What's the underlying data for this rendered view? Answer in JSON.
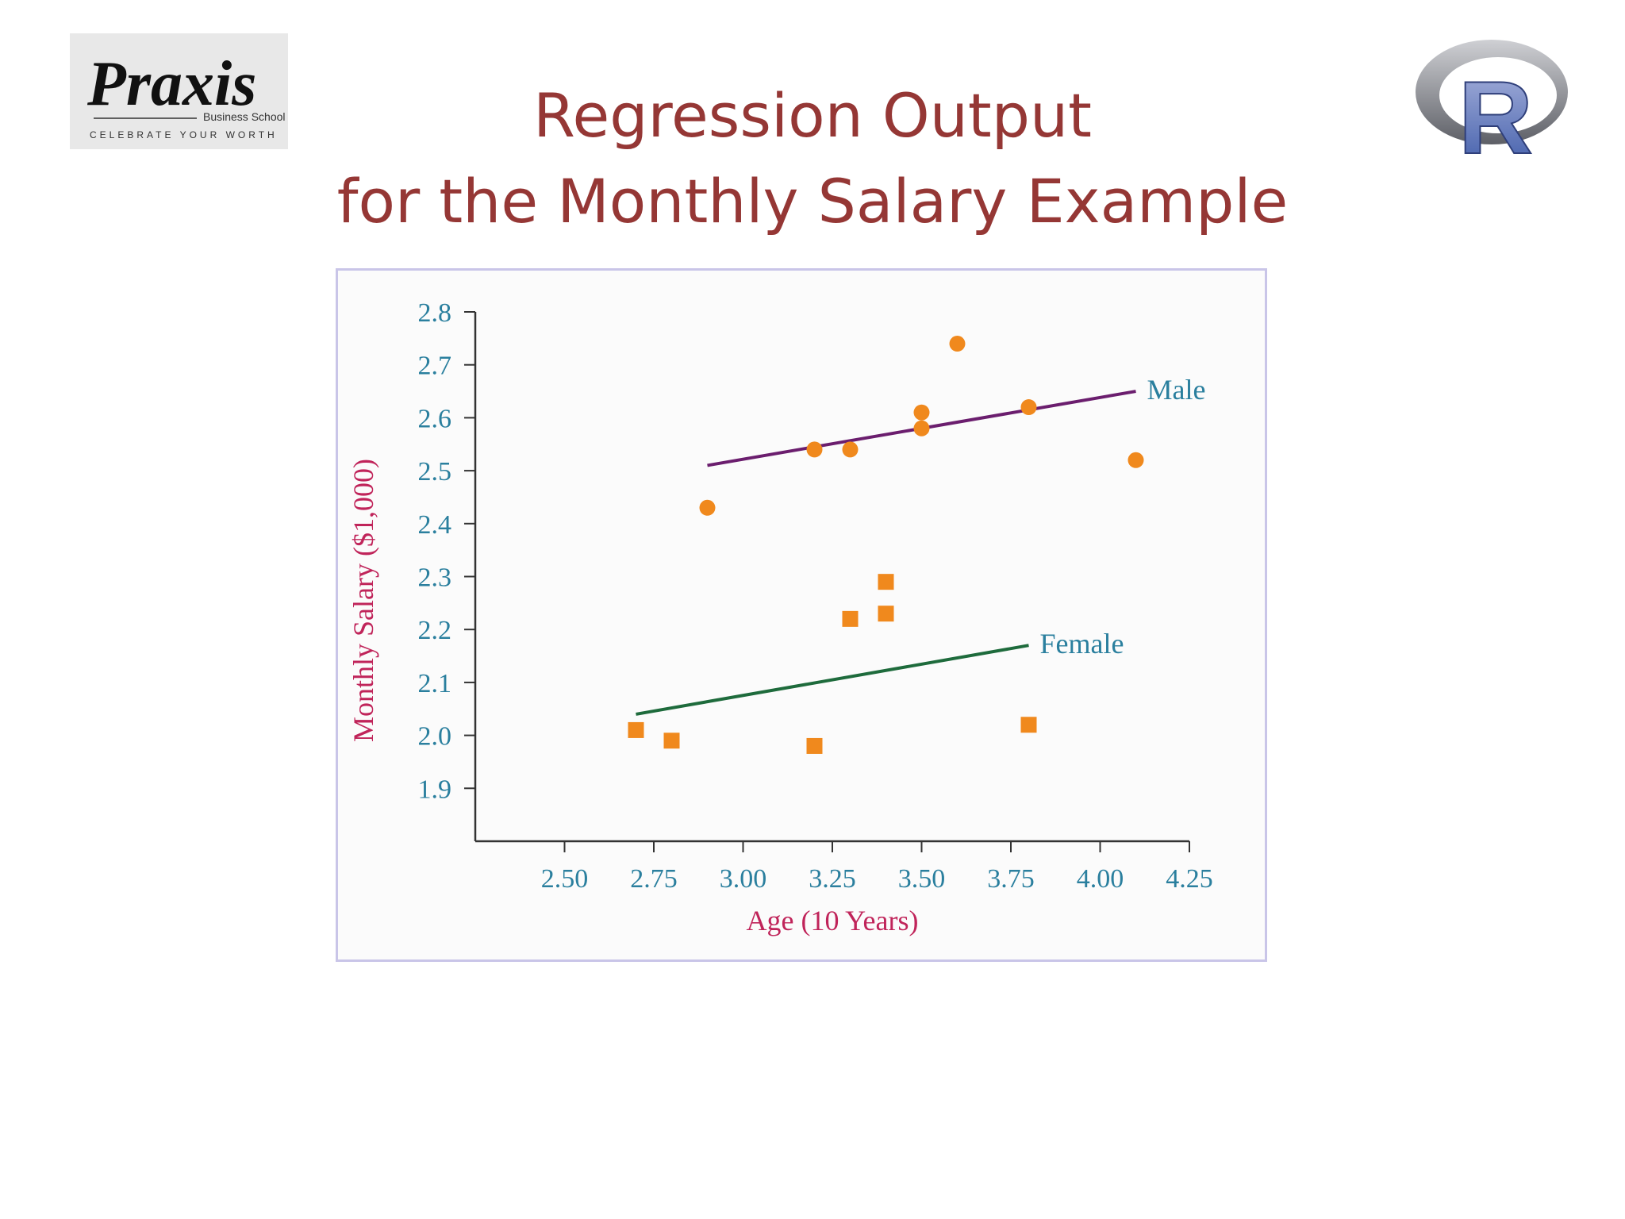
{
  "logos": {
    "praxis_name": "Praxis",
    "praxis_sub": "Business School",
    "praxis_tagline": "CELEBRATE YOUR WORTH",
    "r_letter": "R"
  },
  "title": {
    "line1": "Regression Output",
    "line2": "for the Monthly Salary Example"
  },
  "colors": {
    "title": "#953735",
    "axis_label": "#c0245a",
    "tick_label": "#2a7f9e",
    "marker": "#f0891d",
    "male_line": "#6b1e6e",
    "female_line": "#1e6b3c",
    "frame": "#c9c5e8"
  },
  "chart_data": {
    "type": "scatter",
    "xlabel": "Age (10 Years)",
    "ylabel": "Monthly Salary ($1,000)",
    "xlim": [
      2.25,
      4.25
    ],
    "ylim": [
      1.8,
      2.8
    ],
    "x_ticks": [
      "2.50",
      "2.75",
      "3.00",
      "3.25",
      "3.50",
      "3.75",
      "4.00",
      "4.25"
    ],
    "y_ticks": [
      "1.9",
      "2.0",
      "2.1",
      "2.2",
      "2.3",
      "2.4",
      "2.5",
      "2.6",
      "2.7",
      "2.8"
    ],
    "grid": false,
    "series": [
      {
        "name": "Male",
        "marker": "circle",
        "points": [
          [
            2.9,
            2.43
          ],
          [
            3.2,
            2.54
          ],
          [
            3.3,
            2.54
          ],
          [
            3.5,
            2.61
          ],
          [
            3.5,
            2.58
          ],
          [
            3.6,
            2.74
          ],
          [
            3.8,
            2.62
          ],
          [
            4.1,
            2.52
          ]
        ],
        "fit_line": [
          [
            2.9,
            2.51
          ],
          [
            4.1,
            2.65
          ]
        ]
      },
      {
        "name": "Female",
        "marker": "square",
        "points": [
          [
            2.7,
            2.01
          ],
          [
            2.8,
            1.99
          ],
          [
            3.2,
            1.98
          ],
          [
            3.3,
            2.22
          ],
          [
            3.4,
            2.23
          ],
          [
            3.4,
            2.29
          ],
          [
            3.8,
            2.02
          ]
        ],
        "fit_line": [
          [
            2.7,
            2.04
          ],
          [
            3.8,
            2.17
          ]
        ]
      }
    ]
  }
}
